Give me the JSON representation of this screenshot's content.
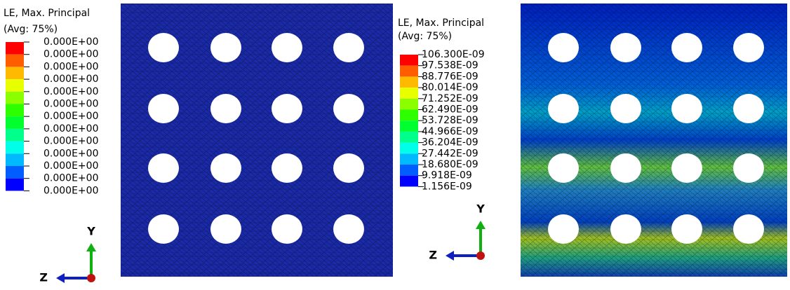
{
  "legends": [
    {
      "title": "LE, Max. Principal",
      "subtitle": "(Avg: 75%)",
      "labels": [
        "0.000E+00",
        "0.000E+00",
        "0.000E+00",
        "0.000E+00",
        "0.000E+00",
        "0.000E+00",
        "0.000E+00",
        "0.000E+00",
        "0.000E+00",
        "0.000E+00",
        "0.000E+00",
        "0.000E+00",
        "0.000E+00"
      ]
    },
    {
      "title": "LE, Max. Principal",
      "subtitle": "(Avg: 75%)",
      "labels": [
        "106.300E-09",
        "97.538E-09",
        "88.776E-09",
        "80.014E-09",
        "71.252E-09",
        "62.490E-09",
        "53.728E-09",
        "44.966E-09",
        "36.204E-09",
        "27.442E-09",
        "18.680E-09",
        "9.918E-09",
        "1.156E-09"
      ]
    }
  ],
  "colors": [
    "#ff0000",
    "#ff5d00",
    "#ffb900",
    "#e8ff00",
    "#8bff00",
    "#2eff00",
    "#00ff2e",
    "#00ff8b",
    "#00ffe8",
    "#00b9ff",
    "#005dff",
    "#0000ff"
  ],
  "triads": [
    {
      "y_label": "Y",
      "z_label": "Z"
    },
    {
      "y_label": "Y",
      "z_label": "Z"
    }
  ]
}
